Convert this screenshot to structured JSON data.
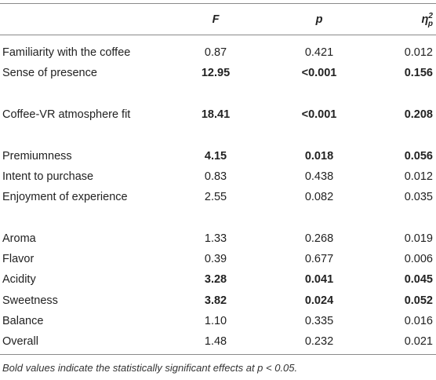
{
  "table": {
    "header": {
      "f": "F",
      "p": "p",
      "eta": {
        "symbol": "η",
        "sub": "p",
        "sup": "2"
      }
    },
    "groups": [
      [
        {
          "label": "Familiarity with the coffee",
          "f": "0.87",
          "p": "0.421",
          "eta": "0.012",
          "bold": false
        },
        {
          "label": "Sense of presence",
          "f": "12.95",
          "p": "<0.001",
          "eta": "0.156",
          "bold": true
        }
      ],
      [
        {
          "label": "Coffee-VR atmosphere fit",
          "f": "18.41",
          "p": "<0.001",
          "eta": "0.208",
          "bold": true
        }
      ],
      [
        {
          "label": "Premiumness",
          "f": "4.15",
          "p": "0.018",
          "eta": "0.056",
          "bold": true
        },
        {
          "label": "Intent to purchase",
          "f": "0.83",
          "p": "0.438",
          "eta": "0.012",
          "bold": false
        },
        {
          "label": "Enjoyment of experience",
          "f": "2.55",
          "p": "0.082",
          "eta": "0.035",
          "bold": false
        }
      ],
      [
        {
          "label": "Aroma",
          "f": "1.33",
          "p": "0.268",
          "eta": "0.019",
          "bold": false
        },
        {
          "label": "Flavor",
          "f": "0.39",
          "p": "0.677",
          "eta": "0.006",
          "bold": false
        },
        {
          "label": "Acidity",
          "f": "3.28",
          "p": "0.041",
          "eta": "0.045",
          "bold": true
        },
        {
          "label": "Sweetness",
          "f": "3.82",
          "p": "0.024",
          "eta": "0.052",
          "bold": true
        },
        {
          "label": "Balance",
          "f": "1.10",
          "p": "0.335",
          "eta": "0.016",
          "bold": false
        },
        {
          "label": "Overall",
          "f": "1.48",
          "p": "0.232",
          "eta": "0.021",
          "bold": false
        }
      ]
    ],
    "footnote": "Bold values indicate the statistically significant effects at p < 0.05."
  }
}
